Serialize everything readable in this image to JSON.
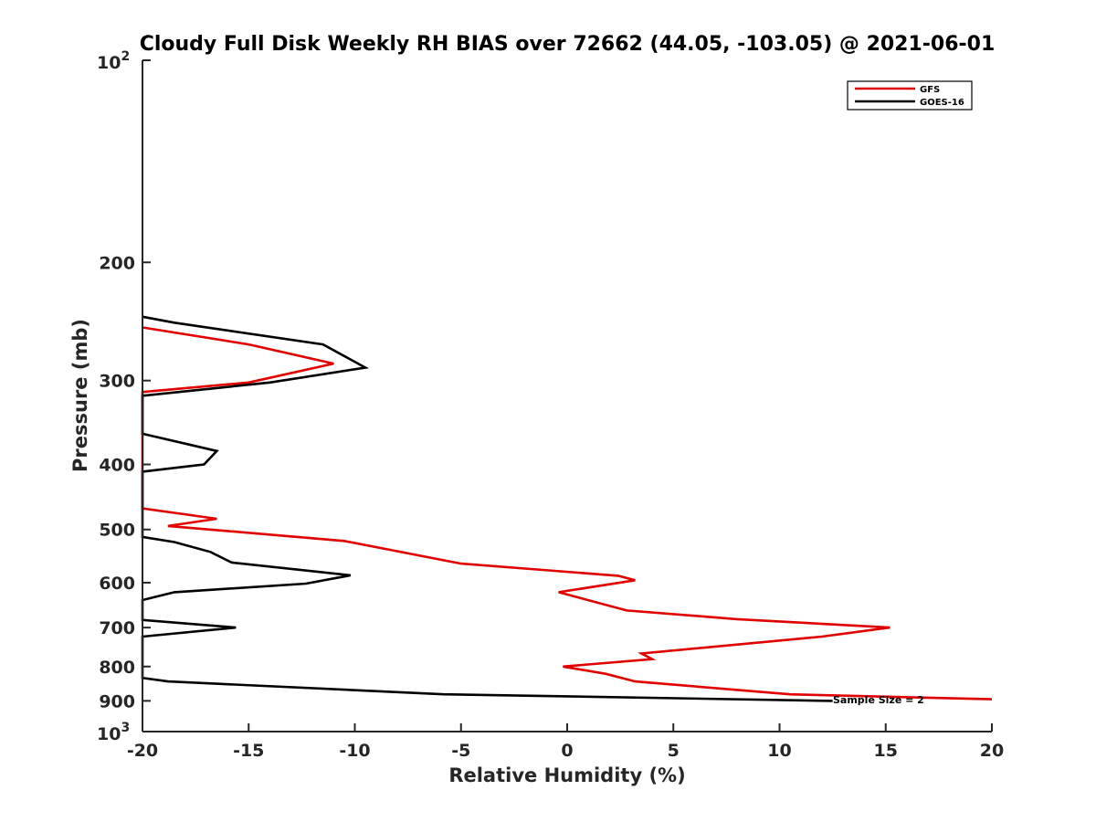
{
  "chart_data": {
    "type": "line",
    "title": "Cloudy Full Disk Weekly RH BIAS over 72662 (44.05, -103.05) @ 2021-06-01",
    "xlabel": "Relative Humidity (%)",
    "ylabel": "Pressure (mb)",
    "xlim": [
      -20,
      20
    ],
    "ylim": [
      100,
      1000
    ],
    "y_scale": "log",
    "y_reversed": true,
    "x_ticks": [
      "-20",
      "-15",
      "-10",
      "-5",
      "0",
      "5",
      "10",
      "15",
      "20"
    ],
    "y_ticks": [
      {
        "value": 100,
        "base": "10",
        "exp": "2"
      },
      {
        "value": 200,
        "label": "200"
      },
      {
        "value": 300,
        "label": "300"
      },
      {
        "value": 400,
        "label": "400"
      },
      {
        "value": 500,
        "label": "500"
      },
      {
        "value": 600,
        "label": "600"
      },
      {
        "value": 700,
        "label": "700"
      },
      {
        "value": 800,
        "label": "800"
      },
      {
        "value": 900,
        "label": "900"
      },
      {
        "value": 1000,
        "base": "10",
        "exp": "3"
      }
    ],
    "grid": false,
    "legend_position": "top-right",
    "series": [
      {
        "name": "GFS",
        "color": "#e00000",
        "points": [
          [
            -20,
            250
          ],
          [
            -15,
            265
          ],
          [
            -11,
            283
          ],
          [
            -15,
            302
          ],
          [
            -20,
            312
          ],
          [
            -20,
            465
          ],
          [
            -16.5,
            482
          ],
          [
            -18.8,
            494
          ],
          [
            -10.5,
            520
          ],
          [
            -5,
            562
          ],
          [
            2.4,
            586
          ],
          [
            3.2,
            595
          ],
          [
            -0.4,
            620
          ],
          [
            2.8,
            660
          ],
          [
            8,
            680
          ],
          [
            15.2,
            700
          ],
          [
            12,
            722
          ],
          [
            3.5,
            765
          ],
          [
            4,
            780
          ],
          [
            -0.2,
            800
          ],
          [
            1.8,
            820
          ],
          [
            3.2,
            842
          ],
          [
            10.5,
            880
          ],
          [
            20,
            895
          ]
        ]
      },
      {
        "name": "GOES-16",
        "color": "#000000",
        "points": [
          [
            -20,
            241
          ],
          [
            -18.5,
            246
          ],
          [
            -11.5,
            265
          ],
          [
            -9.5,
            287
          ],
          [
            -14,
            302
          ],
          [
            -20,
            316
          ],
          [
            -20,
            360
          ],
          [
            -16.5,
            382
          ],
          [
            -17.1,
            400
          ],
          [
            -20,
            410
          ],
          [
            -20,
            513
          ],
          [
            -18.5,
            522
          ],
          [
            -16.8,
            540
          ],
          [
            -15.8,
            560
          ],
          [
            -10.2,
            585
          ],
          [
            -12.3,
            602
          ],
          [
            -18.5,
            620
          ],
          [
            -20,
            637
          ],
          [
            -20,
            682
          ],
          [
            -15.6,
            700
          ],
          [
            -20,
            722
          ],
          [
            -20,
            832
          ],
          [
            -18.8,
            842
          ],
          [
            -5.8,
            880
          ],
          [
            12.5,
            900
          ]
        ]
      }
    ],
    "annotations": [
      "Sample Size = 2"
    ]
  }
}
